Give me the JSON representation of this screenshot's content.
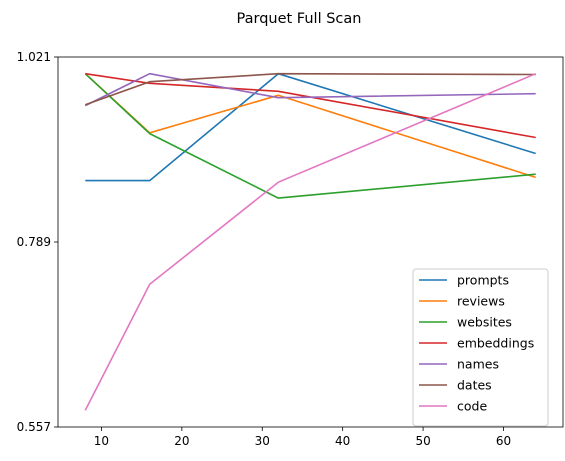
{
  "chart_data": {
    "type": "line",
    "title": "Parquet Full Scan",
    "xlabel": "",
    "ylabel": "",
    "x": [
      8,
      16,
      32,
      64
    ],
    "xlim": [
      4.6,
      67.4
    ],
    "ylim": [
      0.557,
      1.021
    ],
    "xticks": [
      10,
      20,
      30,
      40,
      50,
      60
    ],
    "yticks": [
      0.557,
      0.789,
      1.021
    ],
    "ytick_labels": [
      "0.557",
      "0.789",
      "1.021"
    ],
    "grid": false,
    "legend_position": "lower-right",
    "series": [
      {
        "name": "prompts",
        "color": "#1f77b4",
        "values": [
          0.866,
          0.866,
          1.0,
          0.9
        ]
      },
      {
        "name": "reviews",
        "color": "#ff7f0e",
        "values": [
          1.0,
          0.926,
          0.973,
          0.87
        ]
      },
      {
        "name": "websites",
        "color": "#2ca02c",
        "values": [
          1.0,
          0.925,
          0.844,
          0.874
        ]
      },
      {
        "name": "embeddings",
        "color": "#d62728",
        "values": [
          1.0,
          0.988,
          0.978,
          0.92
        ]
      },
      {
        "name": "names",
        "color": "#9467bd",
        "values": [
          0.96,
          1.0,
          0.97,
          0.975
        ]
      },
      {
        "name": "dates",
        "color": "#8c564b",
        "values": [
          0.961,
          0.99,
          1.0,
          0.999
        ]
      },
      {
        "name": "code",
        "color": "#e377c2",
        "values": [
          0.578,
          0.736,
          0.864,
          1.0
        ]
      }
    ]
  }
}
